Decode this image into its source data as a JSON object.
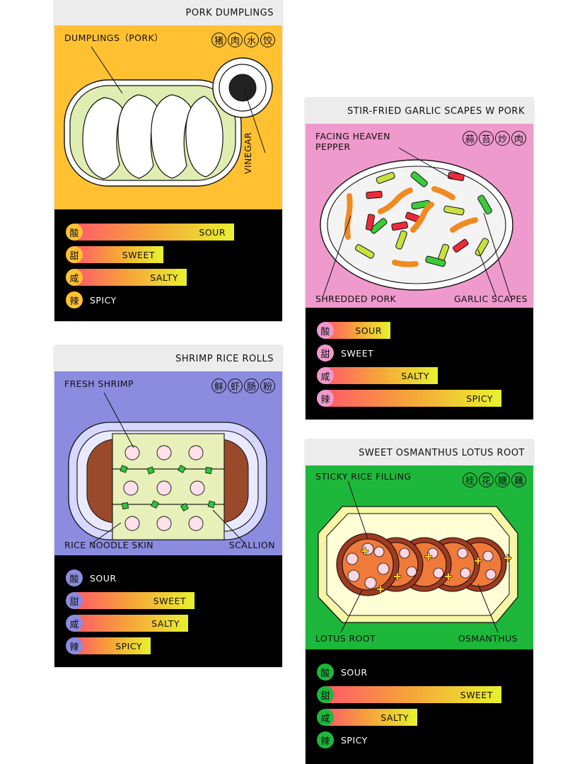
{
  "colors": {
    "yellow": "#ffc132",
    "pink": "#ef9acd",
    "purple": "#8b8ce0",
    "green": "#1db83b"
  },
  "cards": [
    {
      "title": "PORK DUMPLINGS",
      "chars": [
        "猪",
        "肉",
        "水",
        "饺"
      ],
      "labels": {
        "a": "DUMPLINGS（PORK）",
        "b": "VINEGAR"
      },
      "flavors": [
        {
          "char": "酸",
          "label": "SOUR",
          "level": 0.85
        },
        {
          "char": "甜",
          "label": "SWEET",
          "level": 0.4
        },
        {
          "char": "咸",
          "label": "SALTY",
          "level": 0.55
        },
        {
          "char": "辣",
          "label": "SPICY",
          "level": 0
        }
      ]
    },
    {
      "title": "STIR-FRIED GARLIC SCAPES W PORK",
      "chars": [
        "蒜",
        "苔",
        "炒",
        "肉"
      ],
      "labels": {
        "a": "FACING HEAVEN",
        "a2": "PEPPER",
        "b": "SHREDDED PORK",
        "c": "GARLIC SCAPES"
      },
      "flavors": [
        {
          "char": "酸",
          "label": "SOUR",
          "level": 0.25
        },
        {
          "char": "甜",
          "label": "SWEET",
          "level": 0
        },
        {
          "char": "咸",
          "label": "SALTY",
          "level": 0.55
        },
        {
          "char": "辣",
          "label": "SPICY",
          "level": 0.95
        }
      ]
    },
    {
      "title": "SHRIMP RICE ROLLS",
      "chars": [
        "鲜",
        "虾",
        "肠",
        "粉"
      ],
      "labels": {
        "a": "FRESH SHRIMP",
        "b": "RICE NOODLE SKIN",
        "c": "SCALLION"
      },
      "flavors": [
        {
          "char": "酸",
          "label": "SOUR",
          "level": 0
        },
        {
          "char": "甜",
          "label": "SWEET",
          "level": 0.6
        },
        {
          "char": "咸",
          "label": "SALTY",
          "level": 0.56
        },
        {
          "char": "辣",
          "label": "SPICY",
          "level": 0.32
        }
      ]
    },
    {
      "title": "SWEET OSMANTHUS LOTUS ROOT",
      "chars": [
        "桂",
        "花",
        "糖",
        "藕"
      ],
      "labels": {
        "a": "STICKY RICE FILLING",
        "b": "LOTUS ROOT",
        "c": "OSMANTHUS"
      },
      "flavors": [
        {
          "char": "酸",
          "label": "SOUR",
          "level": 0
        },
        {
          "char": "甜",
          "label": "SWEET",
          "level": 0.95
        },
        {
          "char": "咸",
          "label": "SALTY",
          "level": 0.42
        },
        {
          "char": "辣",
          "label": "SPICY",
          "level": 0
        }
      ]
    }
  ]
}
